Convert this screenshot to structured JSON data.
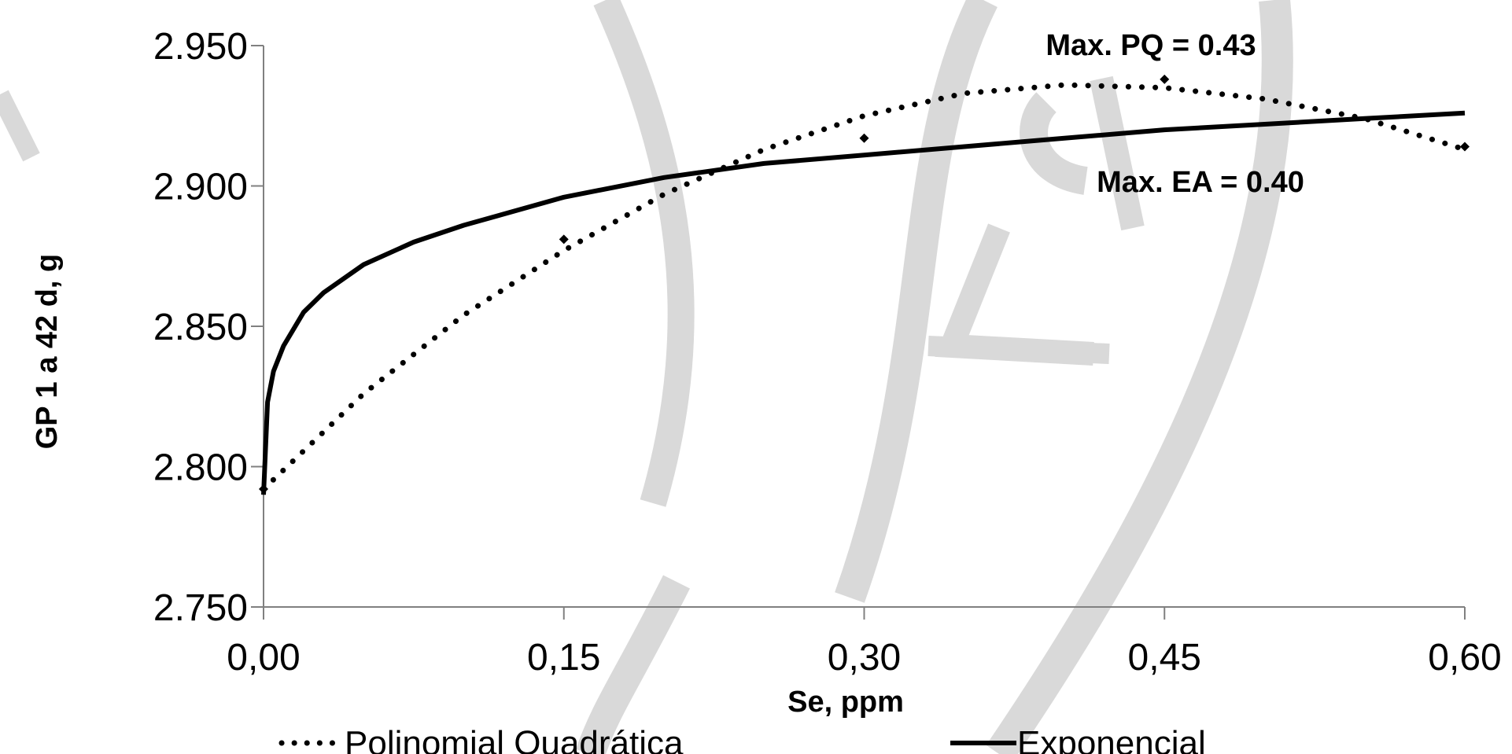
{
  "chart_data": {
    "type": "line",
    "xlabel": "Se, ppm",
    "ylabel": "GP 1 a 42 d, g",
    "xlim": [
      0,
      0.6
    ],
    "ylim": [
      2.75,
      2.95
    ],
    "x_ticks": [
      "0,00",
      "0,15",
      "0,30",
      "0,45",
      "0,60"
    ],
    "y_ticks": [
      "2.750",
      "2.800",
      "2.850",
      "2.900",
      "2.950"
    ],
    "grid": false,
    "legend_position": "bottom",
    "observed_points": [
      {
        "x": 0.0,
        "y": 2.792
      },
      {
        "x": 0.15,
        "y": 2.881
      },
      {
        "x": 0.3,
        "y": 2.917
      },
      {
        "x": 0.45,
        "y": 2.938
      },
      {
        "x": 0.6,
        "y": 2.914
      }
    ],
    "series": [
      {
        "name": "Polinomial Quadrática",
        "style": "dotted",
        "x": [
          0.0,
          0.05,
          0.1,
          0.15,
          0.2,
          0.25,
          0.3,
          0.35,
          0.4,
          0.45,
          0.5,
          0.55,
          0.6
        ],
        "values": [
          2.792,
          2.826,
          2.854,
          2.877,
          2.897,
          2.913,
          2.925,
          2.933,
          2.936,
          2.935,
          2.931,
          2.924,
          2.913
        ]
      },
      {
        "name": "Exponencial",
        "style": "solid",
        "x": [
          0.0,
          0.002,
          0.005,
          0.01,
          0.02,
          0.03,
          0.05,
          0.075,
          0.1,
          0.15,
          0.2,
          0.25,
          0.3,
          0.35,
          0.4,
          0.45,
          0.5,
          0.55,
          0.6
        ],
        "values": [
          2.79,
          2.823,
          2.834,
          2.843,
          2.855,
          2.862,
          2.872,
          2.88,
          2.886,
          2.896,
          2.903,
          2.908,
          2.911,
          2.914,
          2.917,
          2.92,
          2.922,
          2.924,
          2.926
        ]
      }
    ],
    "annotations": [
      {
        "text": "Max. PQ = 0.43",
        "x": 0.45,
        "y": 2.9485
      },
      {
        "text": "Max. EA = 0.40",
        "x": 0.475,
        "y": 2.9005
      }
    ],
    "colors": {
      "line": "#000000",
      "axis": "#808080",
      "watermark": "#d9d9d9"
    }
  }
}
